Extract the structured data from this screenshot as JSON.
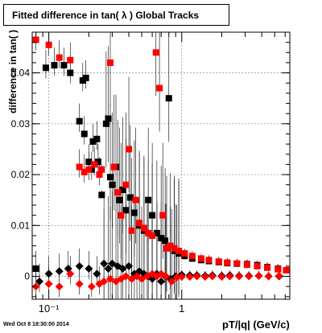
{
  "chart_data": {
    "type": "scatter",
    "title": "Fitted difference in tan( λ )  Global Tracks",
    "xlabel": "pT/|q| (GeV/c)",
    "ylabel": "difference in tan( )",
    "x_scale": "log",
    "xlim": [
      0.075,
      6.5
    ],
    "ylim": [
      -0.0045,
      0.048
    ],
    "x_tick_labels": [
      {
        "value": 0.1,
        "label": "10⁻¹"
      },
      {
        "value": 1,
        "label": "1"
      }
    ],
    "y_ticks": [
      0,
      0.01,
      0.02,
      0.03,
      0.04
    ],
    "y_tick_labels": [
      "0",
      "0.01",
      "0.02",
      "0.03",
      "0.04"
    ],
    "grid": true,
    "series": [
      {
        "color": "#000000",
        "marker": "square",
        "points": [
          [
            0.08,
            0.0015
          ],
          [
            0.095,
            0.041
          ],
          [
            0.11,
            0.0415
          ],
          [
            0.13,
            0.0415
          ],
          [
            0.145,
            0.04
          ],
          [
            0.18,
            0.0385
          ],
          [
            0.19,
            0.039
          ],
          [
            0.17,
            0.0305
          ],
          [
            0.185,
            0.028
          ],
          [
            0.2,
            0.0225
          ],
          [
            0.21,
            0.021
          ],
          [
            0.215,
            0.0265
          ],
          [
            0.23,
            0.027
          ],
          [
            0.235,
            0.0225
          ],
          [
            0.25,
            0.016
          ],
          [
            0.27,
            0.03
          ],
          [
            0.28,
            0.031
          ],
          [
            0.29,
            0.0195
          ],
          [
            0.3,
            0.018
          ],
          [
            0.32,
            0.0215
          ],
          [
            0.34,
            0.015
          ],
          [
            0.36,
            0.017
          ],
          [
            0.38,
            0.013
          ],
          [
            0.41,
            0.0155
          ],
          [
            0.44,
            0.0125
          ],
          [
            0.48,
            0.01
          ],
          [
            0.52,
            0.009
          ],
          [
            0.56,
            0.015
          ],
          [
            0.6,
            0.012
          ],
          [
            0.65,
            0.0085
          ],
          [
            0.7,
            0.0075
          ],
          [
            0.75,
            0.007
          ],
          [
            0.8,
            0.035
          ],
          [
            0.88,
            0.005
          ],
          [
            0.95,
            0.0045
          ],
          [
            1.05,
            0.004
          ],
          [
            1.2,
            0.0035
          ],
          [
            1.4,
            0.0032
          ],
          [
            1.6,
            0.003
          ],
          [
            1.9,
            0.0028
          ],
          [
            2.2,
            0.0026
          ],
          [
            2.6,
            0.0025
          ],
          [
            3.1,
            0.0024
          ],
          [
            3.7,
            0.0022
          ],
          [
            4.4,
            0.0018
          ],
          [
            5.3,
            0.0015
          ]
        ]
      },
      {
        "color": "#ff0000",
        "marker": "square",
        "points": [
          [
            0.08,
            0.0465
          ],
          [
            0.1,
            0.0455
          ],
          [
            0.12,
            0.043
          ],
          [
            0.145,
            0.0425
          ],
          [
            0.17,
            0.0215
          ],
          [
            0.185,
            0.0205
          ],
          [
            0.2,
            0.021
          ],
          [
            0.22,
            0.022
          ],
          [
            0.24,
            0.02
          ],
          [
            0.25,
            0.021
          ],
          [
            0.29,
            0.042
          ],
          [
            0.31,
            0.0215
          ],
          [
            0.33,
            0.0165
          ],
          [
            0.35,
            0.012
          ],
          [
            0.38,
            0.018
          ],
          [
            0.4,
            0.025
          ],
          [
            0.42,
            0.009
          ],
          [
            0.45,
            0.015
          ],
          [
            0.48,
            0.0105
          ],
          [
            0.52,
            0.0095
          ],
          [
            0.56,
            0.0085
          ],
          [
            0.6,
            0.008
          ],
          [
            0.64,
            0.044
          ],
          [
            0.68,
            0.037
          ],
          [
            0.72,
            0.012
          ],
          [
            0.77,
            0.0055
          ],
          [
            0.82,
            0.006
          ],
          [
            0.88,
            0.0055
          ],
          [
            0.95,
            0.005
          ],
          [
            1.05,
            0.0045
          ],
          [
            1.2,
            0.004
          ],
          [
            1.4,
            0.0035
          ],
          [
            1.6,
            0.0032
          ],
          [
            1.9,
            0.0029
          ],
          [
            2.2,
            0.0027
          ],
          [
            2.6,
            0.0025
          ],
          [
            3.1,
            0.0023
          ],
          [
            3.7,
            0.002
          ],
          [
            4.4,
            0.0017
          ],
          [
            5.3,
            0.0014
          ],
          [
            6.1,
            0.0012
          ]
        ]
      },
      {
        "color": "#000000",
        "marker": "diamond",
        "points": [
          [
            0.085,
            -0.001
          ],
          [
            0.1,
            0.0005
          ],
          [
            0.12,
            0.001
          ],
          [
            0.14,
            0.0015
          ],
          [
            0.17,
            0.002
          ],
          [
            0.2,
            0.0015
          ],
          [
            0.23,
            0.0005
          ],
          [
            0.26,
            0.0025
          ],
          [
            0.28,
            0.0015
          ],
          [
            0.3,
            0.0025
          ],
          [
            0.33,
            0.002
          ],
          [
            0.36,
            0.0015
          ],
          [
            0.4,
            0.002
          ],
          [
            0.44,
            0.0005
          ],
          [
            0.48,
            0.001
          ],
          [
            0.52,
            0.0005
          ],
          [
            0.56,
            0.0
          ],
          [
            0.6,
            -0.0005
          ],
          [
            0.65,
            0.0005
          ],
          [
            0.7,
            -0.001
          ],
          [
            0.75,
            0.0
          ],
          [
            0.82,
            -0.0005
          ],
          [
            0.9,
            0.0
          ],
          [
            1.0,
            0.0003
          ],
          [
            1.15,
            0.0002
          ],
          [
            1.3,
            0.0002
          ],
          [
            1.5,
            0.0001
          ],
          [
            1.7,
            0.0002
          ],
          [
            2.0,
            0.0001
          ],
          [
            2.3,
            0.0002
          ],
          [
            2.7,
            0.0001
          ],
          [
            3.2,
            0.0001
          ],
          [
            3.8,
            0.0001
          ],
          [
            4.5,
            0.0
          ],
          [
            5.4,
            0.0
          ]
        ]
      },
      {
        "color": "#ff0000",
        "marker": "diamond",
        "points": [
          [
            0.08,
            -0.002
          ],
          [
            0.1,
            -0.0015
          ],
          [
            0.12,
            -0.002
          ],
          [
            0.145,
            0.0005
          ],
          [
            0.17,
            -0.0015
          ],
          [
            0.21,
            -0.002
          ],
          [
            0.24,
            -0.0015
          ],
          [
            0.26,
            -0.001
          ],
          [
            0.29,
            -0.0005
          ],
          [
            0.32,
            -0.001
          ],
          [
            0.35,
            -0.0005
          ],
          [
            0.38,
            0.0
          ],
          [
            0.42,
            -0.0005
          ],
          [
            0.46,
            0.0
          ],
          [
            0.5,
            -0.0005
          ],
          [
            0.55,
            0.0
          ],
          [
            0.6,
            0.0005
          ],
          [
            0.65,
            0.0
          ],
          [
            0.7,
            0.0005
          ],
          [
            0.76,
            0.0
          ],
          [
            0.84,
            -0.001
          ],
          [
            0.92,
            -0.0002
          ],
          [
            1.0,
            -0.0001
          ],
          [
            1.15,
            -0.0001
          ],
          [
            1.3,
            0.0
          ],
          [
            1.5,
            -0.0001
          ],
          [
            1.7,
            0.0
          ],
          [
            2.0,
            -0.0001
          ],
          [
            2.3,
            0.0
          ],
          [
            2.7,
            0.0
          ],
          [
            3.2,
            0.0
          ],
          [
            3.8,
            0.0001
          ],
          [
            4.5,
            0.0
          ],
          [
            5.4,
            0.0001
          ]
        ]
      }
    ]
  },
  "footer": {
    "timestamp": "Wed Oct  8 18:30:00 2014"
  }
}
